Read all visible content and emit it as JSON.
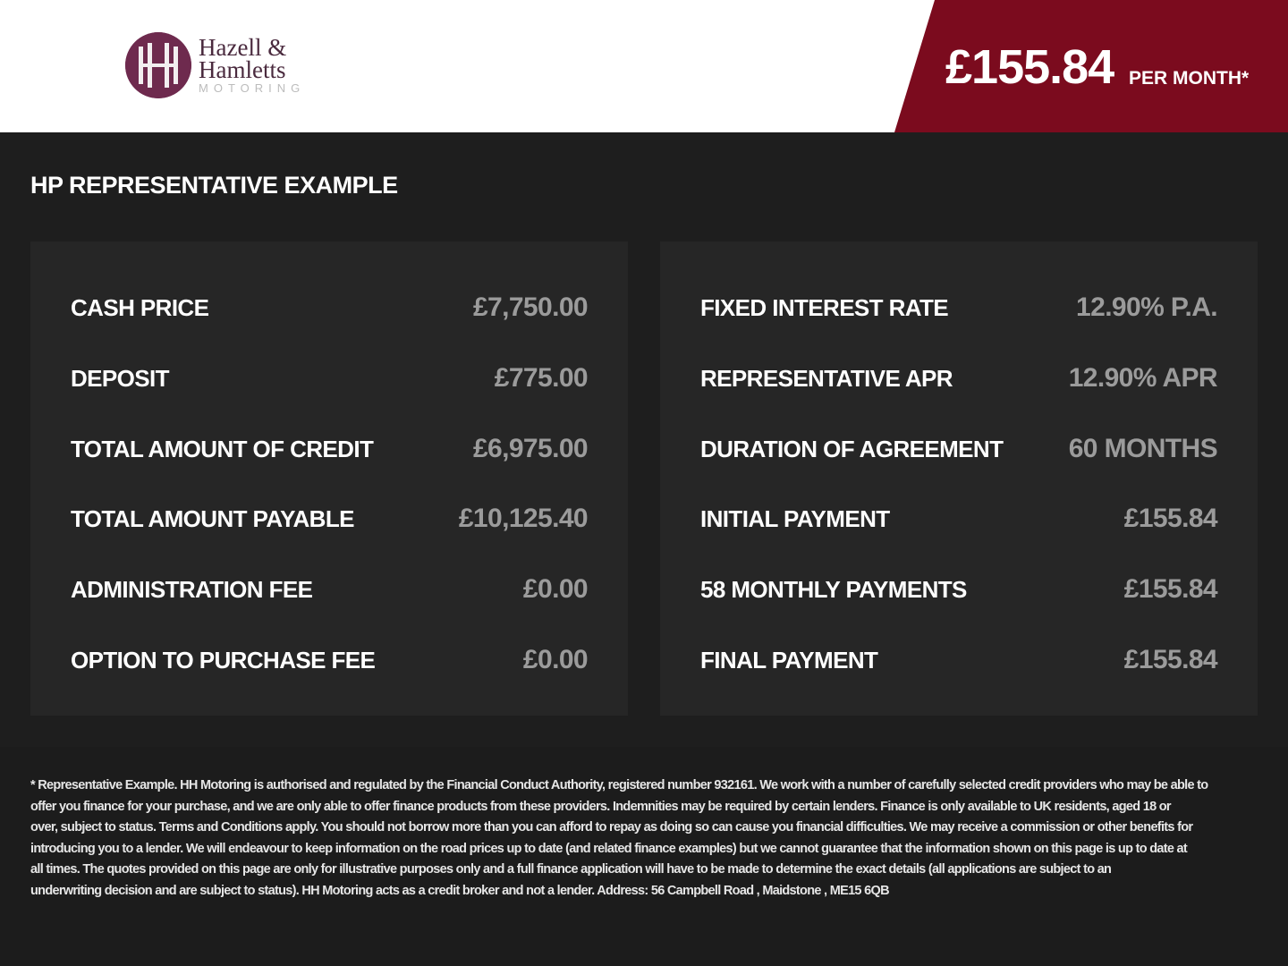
{
  "header": {
    "logo": {
      "line1": "Hazell &",
      "line2": "Hamletts",
      "line3": "MOTORING"
    },
    "price": "£155.84",
    "price_suffix": "PER MONTH*",
    "brand_color": "#7b0b1e"
  },
  "section_title": "HP REPRESENTATIVE EXAMPLE",
  "left_rows": [
    {
      "label": "CASH PRICE",
      "value": "£7,750.00"
    },
    {
      "label": "DEPOSIT",
      "value": "£775.00"
    },
    {
      "label": "TOTAL AMOUNT OF CREDIT",
      "value": "£6,975.00"
    },
    {
      "label": "TOTAL AMOUNT PAYABLE",
      "value": "£10,125.40"
    },
    {
      "label": "ADMINISTRATION FEE",
      "value": "£0.00"
    },
    {
      "label": "OPTION TO PURCHASE FEE",
      "value": "£0.00"
    }
  ],
  "right_rows": [
    {
      "label": "FIXED INTEREST RATE",
      "value": "12.90% P.A."
    },
    {
      "label": "REPRESENTATIVE APR",
      "value": "12.90% APR"
    },
    {
      "label": "DURATION OF AGREEMENT",
      "value": "60 MONTHS"
    },
    {
      "label": "INITIAL PAYMENT",
      "value": "£155.84"
    },
    {
      "label": "58 MONTHLY PAYMENTS",
      "value": "£155.84"
    },
    {
      "label": "FINAL PAYMENT",
      "value": "£155.84"
    }
  ],
  "disclaimer_lines": [
    "* Representative Example. HH Motoring is authorised and regulated by the Financial Conduct Authority, registered number 932161. We work with a number of carefully selected credit providers who may be able to",
    "offer you finance for your purchase, and we are only able to offer finance products from these providers. Indemnities may be required by certain lenders. Finance is only available to UK residents, aged 18 or",
    "over, subject to status. Terms and Conditions apply. You should not borrow more than you can afford to repay as doing so can cause you financial difficulties. We may receive a commission or other benefits for",
    "introducing you to a lender. We will endeavour to keep information on the road prices up to date (and related finance examples) but we cannot guarantee that the information shown on this page is up to date at",
    "all times. The quotes provided on this page are only for illustrative purposes only and a full finance application will have to be made to determine the exact details (all applications are subject to an",
    "underwriting decision and are subject to status). HH Motoring acts as a credit broker and not a lender. Address: 56 Campbell Road , Maidstone , ME15 6QB"
  ]
}
